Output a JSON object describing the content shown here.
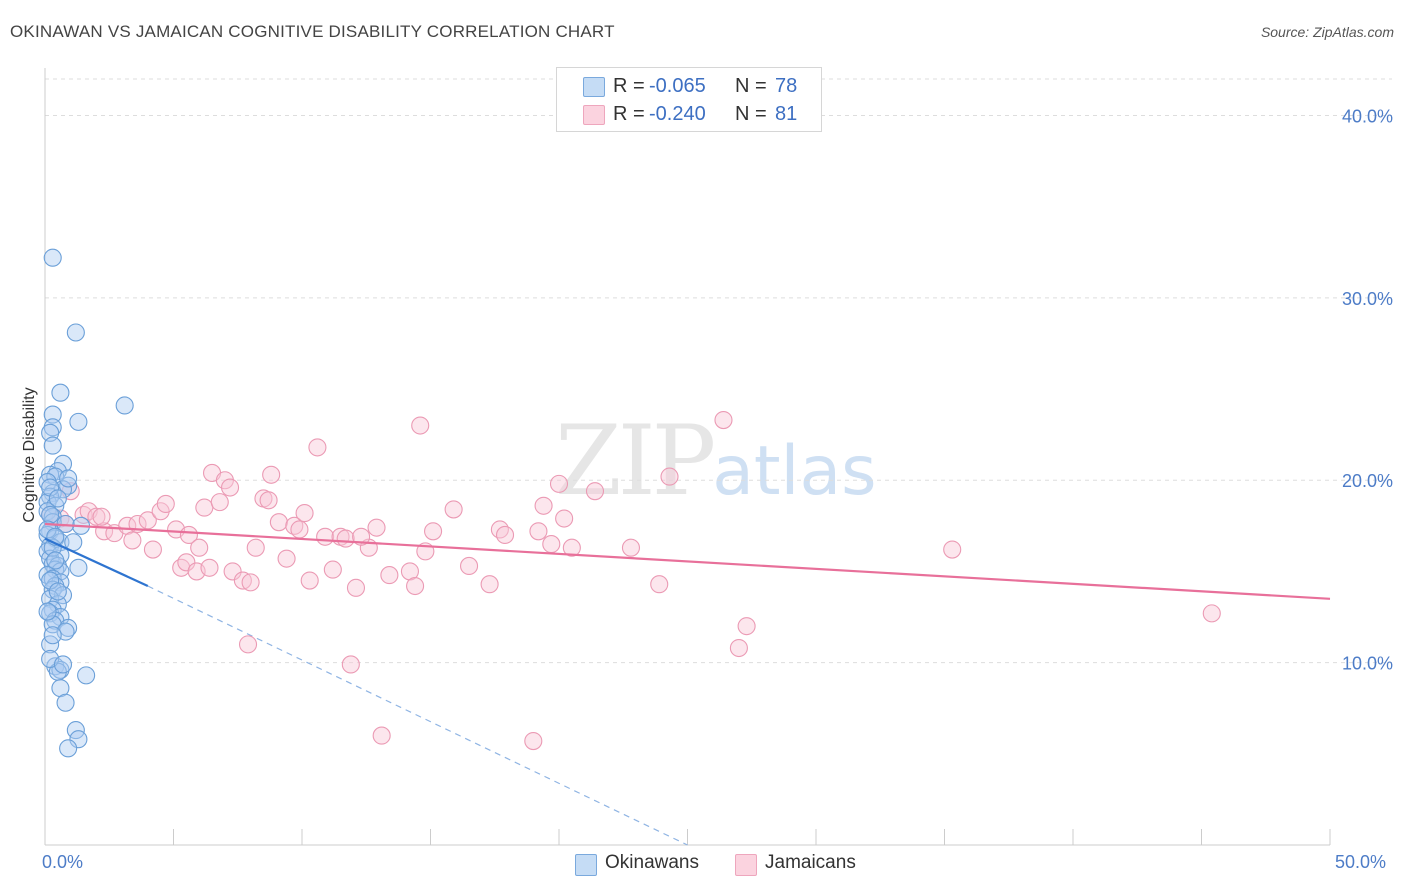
{
  "title": "OKINAWAN VS JAMAICAN COGNITIVE DISABILITY CORRELATION CHART",
  "source": "Source: ZipAtlas.com",
  "watermark": {
    "zip": "ZIP",
    "atlas": "atlas"
  },
  "legend": {
    "series1": {
      "r_label": "R =",
      "r_value": "-0.065",
      "n_label": "N =",
      "n_value": "78"
    },
    "series2": {
      "r_label": "R =",
      "r_value": "-0.240",
      "n_label": "N =",
      "n_value": "81"
    }
  },
  "bottom_legend": [
    "Okinawans",
    "Jamaicans"
  ],
  "colors": {
    "okinawan_fill": "#aecdf2",
    "okinawan_stroke": "#6a9fd8",
    "okinawan_line": "#2e74d0",
    "jamaican_fill": "#f8c7d6",
    "jamaican_stroke": "#eb9ab4",
    "jamaican_line": "#e8709a",
    "grid": "#dddddd",
    "axis_text": "#4d7cc7"
  },
  "chart_data": {
    "type": "scatter",
    "title": "OKINAWAN VS JAMAICAN COGNITIVE DISABILITY CORRELATION CHART",
    "xlabel": "",
    "ylabel": "Cognitive Disability",
    "xlim": [
      0,
      50
    ],
    "ylim": [
      0,
      42
    ],
    "x_tick_labels": [
      "0.0%",
      "50.0%"
    ],
    "y_tick_labels": [
      "10.0%",
      "20.0%",
      "30.0%",
      "40.0%"
    ],
    "y_ticks": [
      10,
      20,
      30,
      40
    ],
    "series": [
      {
        "name": "Okinawans",
        "r": -0.065,
        "n": 78,
        "trend": {
          "x0": 0.0,
          "y0": 16.8,
          "x1": 4.0,
          "y1": 14.2,
          "dashed_to_x": 25.0,
          "dashed_to_y": 0.0
        },
        "points": [
          [
            0.3,
            32.2
          ],
          [
            1.2,
            28.1
          ],
          [
            0.6,
            24.8
          ],
          [
            3.1,
            24.1
          ],
          [
            0.3,
            23.6
          ],
          [
            1.3,
            23.2
          ],
          [
            0.3,
            22.9
          ],
          [
            0.2,
            22.6
          ],
          [
            0.3,
            21.9
          ],
          [
            0.7,
            20.9
          ],
          [
            0.5,
            20.5
          ],
          [
            0.2,
            20.3
          ],
          [
            0.4,
            20.2
          ],
          [
            0.1,
            19.9
          ],
          [
            0.9,
            19.7
          ],
          [
            0.7,
            19.5
          ],
          [
            0.3,
            19.3
          ],
          [
            0.2,
            19.1
          ],
          [
            0.1,
            18.8
          ],
          [
            0.4,
            18.6
          ],
          [
            0.1,
            18.3
          ],
          [
            0.3,
            18.0
          ],
          [
            0.3,
            17.7
          ],
          [
            1.4,
            17.5
          ],
          [
            0.2,
            17.2
          ],
          [
            0.1,
            17.0
          ],
          [
            0.4,
            16.8
          ],
          [
            0.6,
            16.6
          ],
          [
            1.1,
            16.6
          ],
          [
            0.2,
            16.4
          ],
          [
            0.1,
            16.1
          ],
          [
            0.6,
            15.9
          ],
          [
            0.2,
            15.7
          ],
          [
            0.3,
            15.4
          ],
          [
            0.5,
            15.3
          ],
          [
            1.3,
            15.2
          ],
          [
            0.4,
            15.1
          ],
          [
            0.6,
            15.0
          ],
          [
            0.1,
            14.8
          ],
          [
            0.3,
            14.6
          ],
          [
            0.6,
            14.4
          ],
          [
            0.4,
            14.2
          ],
          [
            0.3,
            14.0
          ],
          [
            0.7,
            13.7
          ],
          [
            0.2,
            13.5
          ],
          [
            0.5,
            13.2
          ],
          [
            0.3,
            12.9
          ],
          [
            0.2,
            12.7
          ],
          [
            0.6,
            12.5
          ],
          [
            0.4,
            12.3
          ],
          [
            0.3,
            12.1
          ],
          [
            0.9,
            11.9
          ],
          [
            0.8,
            11.7
          ],
          [
            0.2,
            11.0
          ],
          [
            0.4,
            9.8
          ],
          [
            0.6,
            9.6
          ],
          [
            1.6,
            9.3
          ],
          [
            0.5,
            9.5
          ],
          [
            0.6,
            8.6
          ],
          [
            0.8,
            7.8
          ],
          [
            1.2,
            6.3
          ],
          [
            1.3,
            5.8
          ],
          [
            0.9,
            5.3
          ],
          [
            0.2,
            19.6
          ],
          [
            0.5,
            19.0
          ],
          [
            0.2,
            18.1
          ],
          [
            0.8,
            17.6
          ],
          [
            0.1,
            17.3
          ],
          [
            0.3,
            16.3
          ],
          [
            0.4,
            15.6
          ],
          [
            0.2,
            14.5
          ],
          [
            0.5,
            13.9
          ],
          [
            0.1,
            12.8
          ],
          [
            0.3,
            11.5
          ],
          [
            0.2,
            10.2
          ],
          [
            0.7,
            9.9
          ],
          [
            0.4,
            16.9
          ],
          [
            0.9,
            20.1
          ]
        ]
      },
      {
        "name": "Jamaicans",
        "r": -0.24,
        "n": 81,
        "trend": {
          "x0": 0.0,
          "y0": 17.6,
          "x1": 50.0,
          "y1": 13.5
        },
        "points": [
          [
            0.2,
            18.1
          ],
          [
            0.6,
            17.9
          ],
          [
            0.8,
            17.6
          ],
          [
            1.0,
            19.4
          ],
          [
            1.5,
            18.1
          ],
          [
            1.7,
            18.3
          ],
          [
            2.0,
            18.0
          ],
          [
            2.3,
            17.2
          ],
          [
            2.7,
            17.1
          ],
          [
            3.2,
            17.5
          ],
          [
            3.6,
            17.6
          ],
          [
            3.4,
            16.7
          ],
          [
            4.0,
            17.8
          ],
          [
            4.2,
            16.2
          ],
          [
            4.5,
            18.3
          ],
          [
            4.7,
            18.7
          ],
          [
            5.1,
            17.3
          ],
          [
            5.3,
            15.2
          ],
          [
            5.5,
            15.5
          ],
          [
            5.6,
            17.0
          ],
          [
            5.9,
            15.0
          ],
          [
            6.2,
            18.5
          ],
          [
            6.4,
            15.2
          ],
          [
            6.5,
            20.4
          ],
          [
            6.8,
            18.8
          ],
          [
            7.0,
            20.0
          ],
          [
            7.2,
            19.6
          ],
          [
            7.3,
            15.0
          ],
          [
            7.7,
            14.5
          ],
          [
            7.9,
            11.0
          ],
          [
            8.2,
            16.3
          ],
          [
            8.5,
            19.0
          ],
          [
            8.7,
            18.9
          ],
          [
            8.8,
            20.3
          ],
          [
            9.1,
            17.7
          ],
          [
            9.4,
            15.7
          ],
          [
            9.7,
            17.5
          ],
          [
            9.9,
            17.3
          ],
          [
            10.1,
            18.2
          ],
          [
            10.3,
            14.5
          ],
          [
            10.6,
            21.8
          ],
          [
            10.9,
            16.9
          ],
          [
            11.2,
            15.1
          ],
          [
            11.5,
            16.9
          ],
          [
            11.7,
            16.8
          ],
          [
            11.9,
            9.9
          ],
          [
            12.1,
            14.1
          ],
          [
            12.6,
            16.3
          ],
          [
            12.9,
            17.4
          ],
          [
            13.1,
            6.0
          ],
          [
            13.4,
            14.8
          ],
          [
            14.2,
            15.0
          ],
          [
            14.4,
            14.2
          ],
          [
            14.6,
            23.0
          ],
          [
            14.8,
            16.1
          ],
          [
            15.9,
            18.4
          ],
          [
            16.5,
            15.3
          ],
          [
            17.3,
            14.3
          ],
          [
            17.7,
            17.3
          ],
          [
            17.9,
            17.0
          ],
          [
            19.0,
            5.7
          ],
          [
            19.2,
            17.2
          ],
          [
            19.4,
            18.6
          ],
          [
            19.7,
            16.5
          ],
          [
            20.0,
            19.8
          ],
          [
            20.2,
            17.9
          ],
          [
            20.5,
            16.3
          ],
          [
            21.4,
            19.4
          ],
          [
            22.8,
            16.3
          ],
          [
            23.9,
            14.3
          ],
          [
            24.3,
            20.2
          ],
          [
            26.4,
            23.3
          ],
          [
            27.0,
            10.8
          ],
          [
            27.3,
            12.0
          ],
          [
            35.3,
            16.2
          ],
          [
            45.4,
            12.7
          ],
          [
            2.2,
            18.0
          ],
          [
            6.0,
            16.3
          ],
          [
            8.0,
            14.4
          ],
          [
            12.3,
            16.9
          ],
          [
            15.1,
            17.2
          ]
        ]
      }
    ]
  }
}
